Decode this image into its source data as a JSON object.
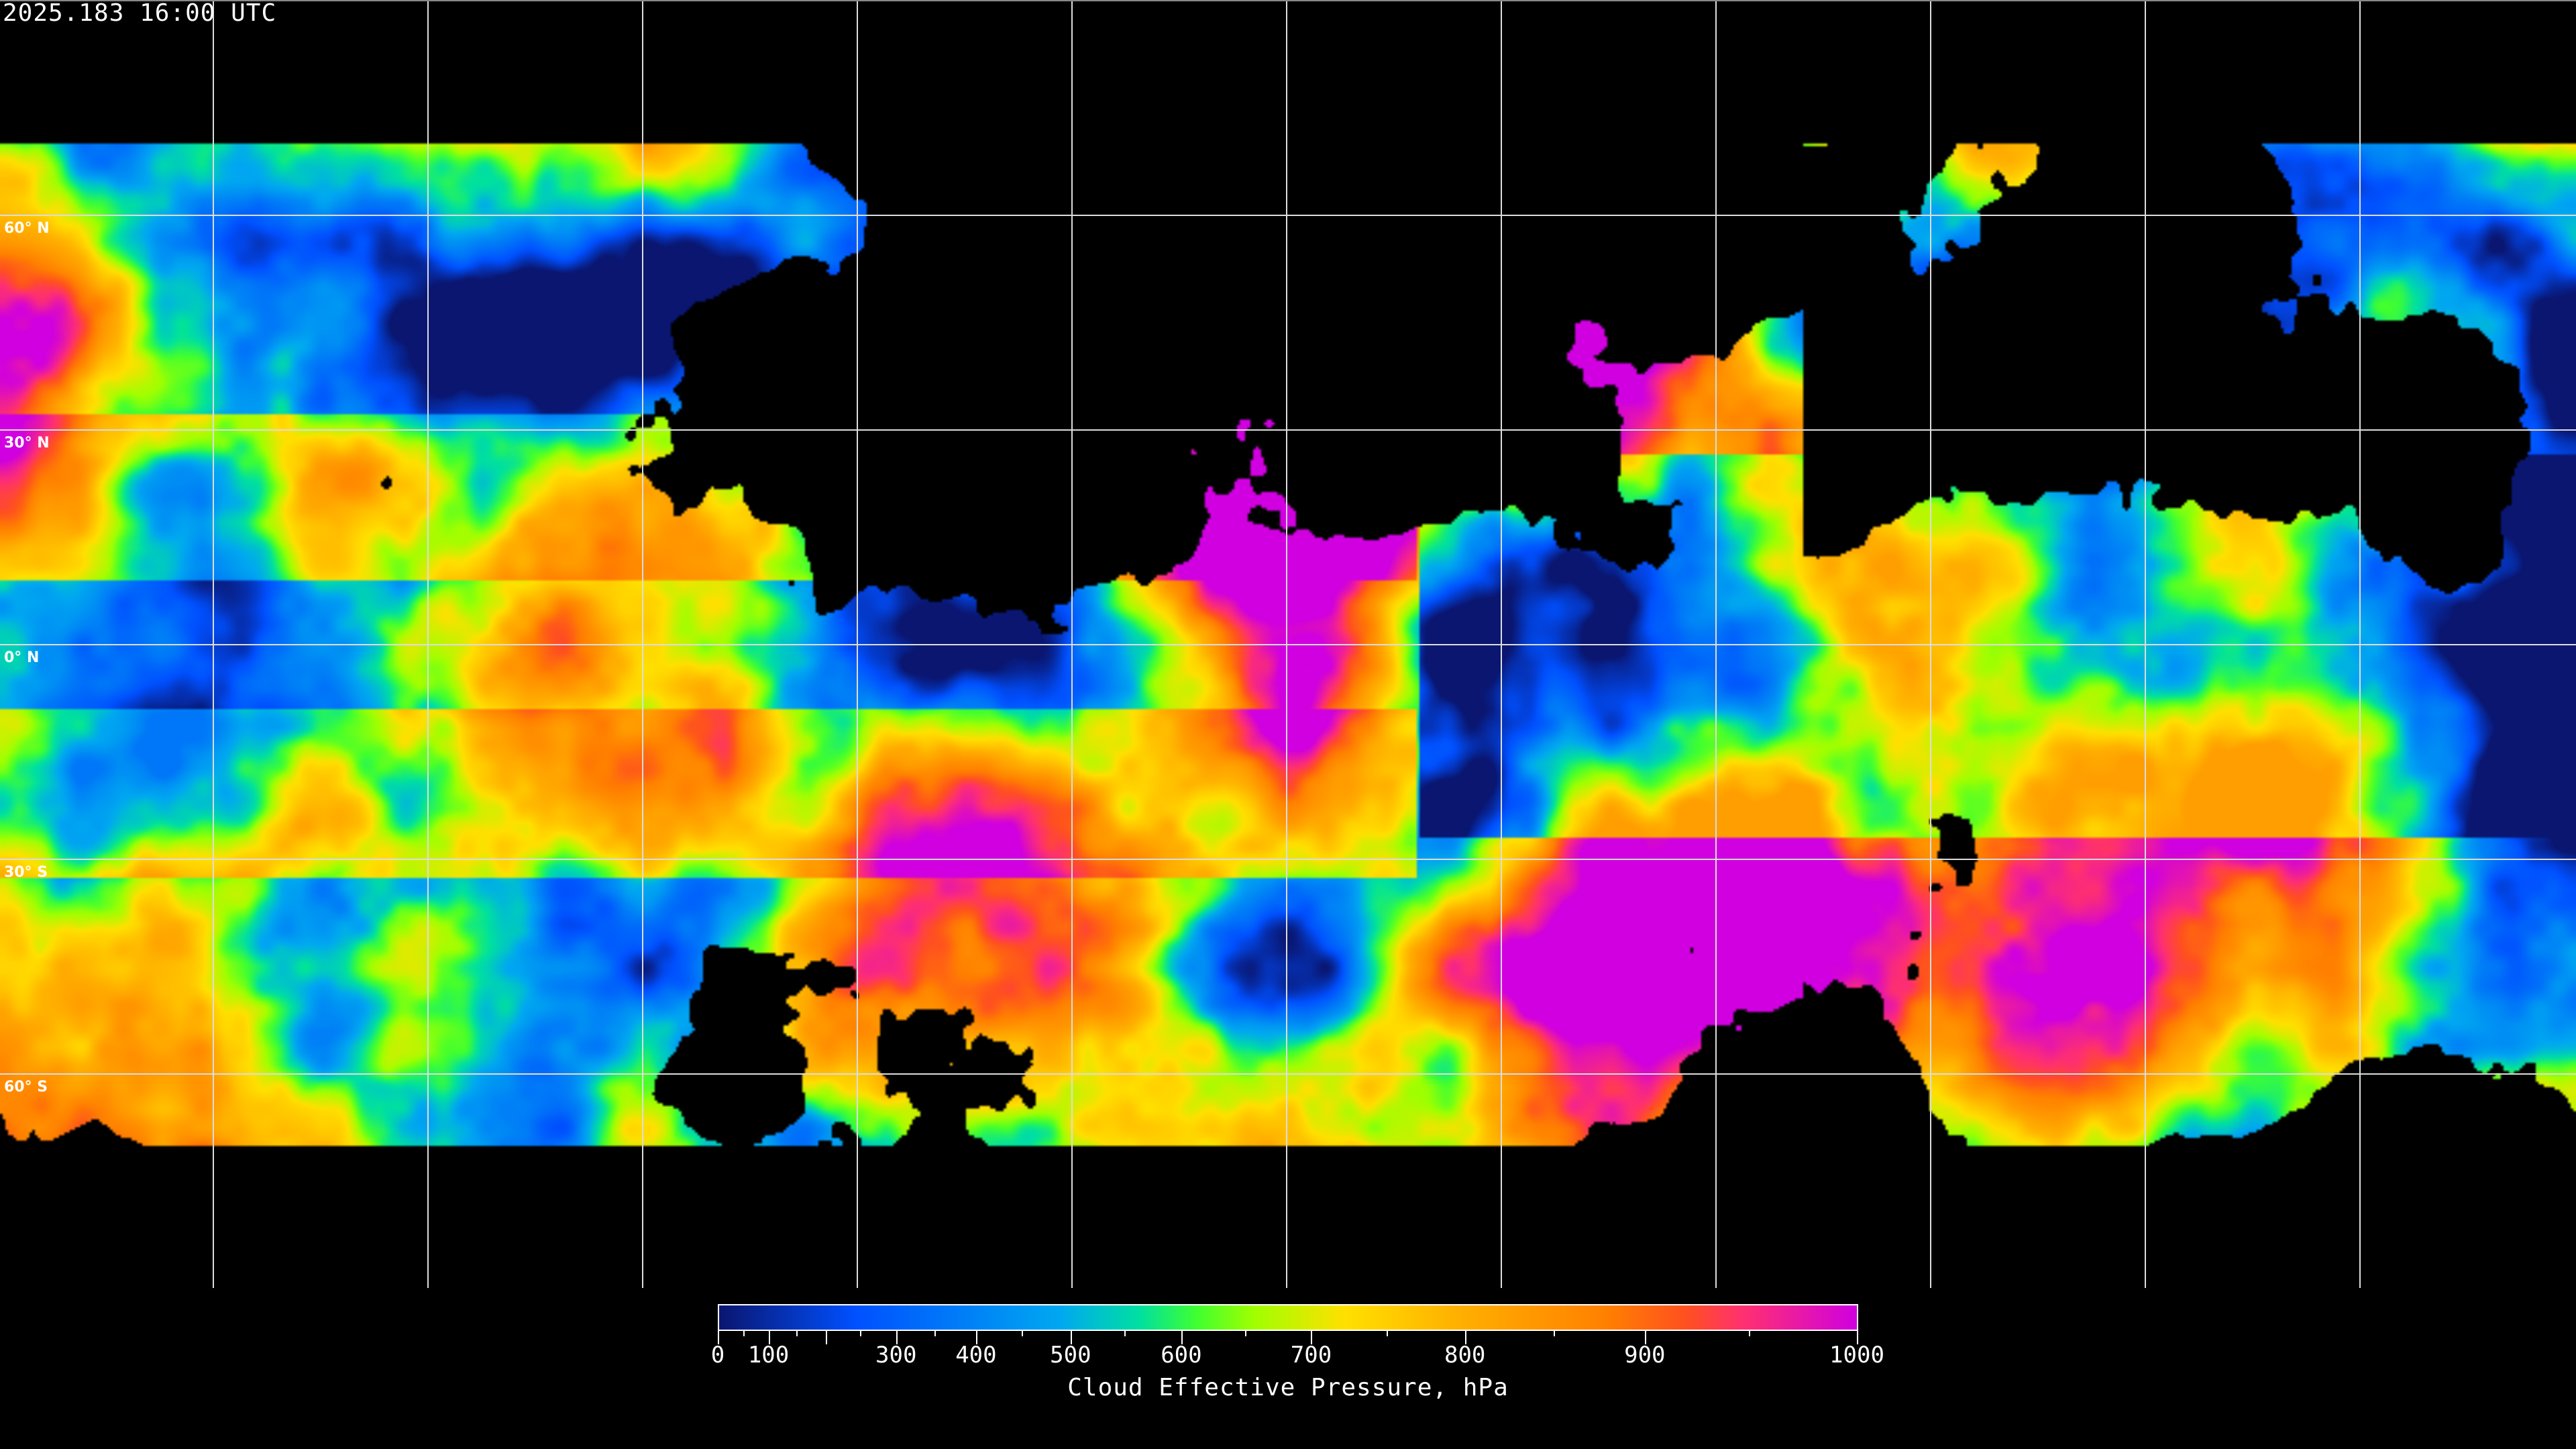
{
  "header": {
    "timestamp": "2025.183 16:00 UTC"
  },
  "map": {
    "projection": "equirectangular",
    "lat_labels": [
      "60° N",
      "30° N",
      "0° N",
      "30° S",
      "60° S"
    ],
    "lat_values": [
      60,
      30,
      0,
      -30,
      -60
    ],
    "lon_gridlines_every_deg": 30,
    "no_data_color": "#000000",
    "coastline_color": "#ffffff"
  },
  "colorbar": {
    "title": "Cloud Effective Pressure, hPa",
    "range": [
      0,
      1000
    ],
    "tick_labels": [
      "0",
      "100",
      "300",
      "400",
      "500",
      "600",
      "700",
      "800",
      "900",
      "1000"
    ],
    "colormap": [
      "#0a1670",
      "#0050ff",
      "#00a8f0",
      "#00e0a0",
      "#40ff30",
      "#a0ff00",
      "#ffe000",
      "#ffb000",
      "#ff8000",
      "#ff5020",
      "#ff3070",
      "#d000e0"
    ]
  }
}
